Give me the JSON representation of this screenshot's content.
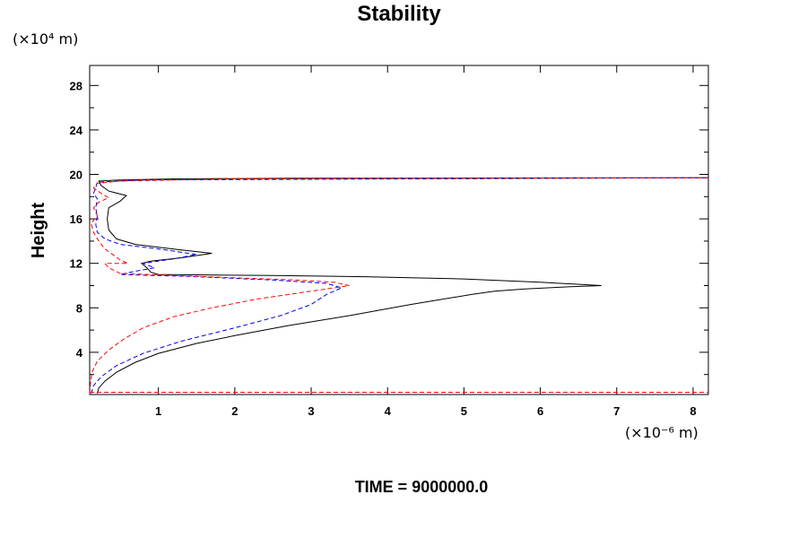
{
  "chart_data": {
    "type": "line",
    "title": "Stability",
    "ylabel": "Height",
    "y_unit": "(×10⁴ m)",
    "x_unit": "(×10⁻⁶ m)",
    "footer": "TIME = 9000000.0",
    "xlim": [
      0.1,
      8.2
    ],
    "ylim": [
      0.2,
      29.8
    ],
    "x_ticks": [
      1,
      2,
      3,
      4,
      5,
      6,
      7,
      8
    ],
    "y_ticks": [
      4,
      8,
      12,
      16,
      20,
      24,
      28
    ],
    "grid": false,
    "series": [
      {
        "color": "#000000",
        "dash": "solid",
        "points": [
          [
            0.2,
            0.3
          ],
          [
            0.22,
            0.8
          ],
          [
            0.3,
            1.4
          ],
          [
            0.45,
            2.2
          ],
          [
            0.7,
            3.1
          ],
          [
            1.0,
            3.9
          ],
          [
            1.5,
            4.8
          ],
          [
            2.0,
            5.5
          ],
          [
            2.7,
            6.4
          ],
          [
            3.5,
            7.3
          ],
          [
            4.3,
            8.3
          ],
          [
            5.1,
            9.2
          ],
          [
            5.4,
            9.5
          ],
          [
            5.8,
            9.7
          ],
          [
            6.4,
            9.9
          ],
          [
            6.8,
            10.0
          ],
          [
            6.0,
            10.3
          ],
          [
            5.0,
            10.6
          ],
          [
            3.7,
            10.8
          ],
          [
            2.5,
            10.9
          ],
          [
            1.0,
            11.0
          ],
          [
            0.9,
            11.2
          ],
          [
            0.85,
            11.6
          ],
          [
            0.78,
            12.0
          ],
          [
            0.9,
            12.2
          ],
          [
            1.3,
            12.5
          ],
          [
            1.7,
            12.9
          ],
          [
            1.3,
            13.2
          ],
          [
            0.7,
            13.7
          ],
          [
            0.45,
            14.2
          ],
          [
            0.35,
            15.0
          ],
          [
            0.33,
            16.0
          ],
          [
            0.35,
            17.0
          ],
          [
            0.5,
            17.6
          ],
          [
            0.58,
            18.1
          ],
          [
            0.35,
            18.5
          ],
          [
            0.25,
            19.0
          ],
          [
            0.22,
            19.4
          ],
          [
            0.5,
            19.5
          ],
          [
            1.2,
            19.6
          ],
          [
            2.8,
            19.65
          ],
          [
            8.2,
            19.7
          ]
        ]
      },
      {
        "color": "#0000ff",
        "dash": "dashed",
        "points": [
          [
            0.12,
            0.3
          ],
          [
            0.15,
            1.0
          ],
          [
            0.25,
            1.8
          ],
          [
            0.45,
            2.8
          ],
          [
            0.8,
            3.9
          ],
          [
            1.3,
            5.0
          ],
          [
            2.0,
            6.2
          ],
          [
            2.6,
            7.3
          ],
          [
            3.0,
            8.3
          ],
          [
            3.2,
            9.2
          ],
          [
            3.4,
            9.8
          ],
          [
            3.2,
            10.2
          ],
          [
            2.5,
            10.5
          ],
          [
            1.5,
            10.8
          ],
          [
            0.5,
            11.0
          ],
          [
            0.7,
            11.3
          ],
          [
            0.95,
            11.6
          ],
          [
            0.8,
            12.0
          ],
          [
            1.2,
            12.4
          ],
          [
            1.5,
            12.8
          ],
          [
            1.0,
            13.3
          ],
          [
            0.5,
            13.7
          ],
          [
            0.3,
            14.2
          ],
          [
            0.2,
            14.8
          ],
          [
            0.18,
            15.5
          ],
          [
            0.2,
            16.2
          ],
          [
            0.18,
            17.0
          ],
          [
            0.2,
            17.8
          ],
          [
            0.15,
            18.3
          ],
          [
            0.18,
            18.8
          ],
          [
            0.2,
            19.3
          ],
          [
            0.8,
            19.5
          ],
          [
            8.2,
            19.7
          ]
        ]
      },
      {
        "color": "#ff0000",
        "dash": "dashed",
        "points": [
          [
            0.1,
            0.3
          ],
          [
            0.11,
            1.2
          ],
          [
            0.13,
            2.2
          ],
          [
            0.2,
            3.2
          ],
          [
            0.35,
            4.2
          ],
          [
            0.55,
            5.2
          ],
          [
            0.8,
            6.2
          ],
          [
            1.2,
            7.2
          ],
          [
            1.7,
            8.0
          ],
          [
            2.3,
            8.8
          ],
          [
            2.8,
            9.3
          ],
          [
            3.3,
            9.8
          ],
          [
            3.5,
            10.0
          ],
          [
            3.3,
            10.3
          ],
          [
            2.8,
            10.5
          ],
          [
            2.0,
            10.7
          ],
          [
            1.2,
            10.9
          ],
          [
            0.5,
            11.1
          ],
          [
            0.35,
            11.6
          ],
          [
            0.3,
            12.0
          ],
          [
            0.6,
            12.0
          ],
          [
            0.5,
            12.3
          ],
          [
            0.4,
            12.8
          ],
          [
            0.3,
            13.3
          ],
          [
            0.22,
            14.0
          ],
          [
            0.15,
            14.8
          ],
          [
            0.12,
            15.6
          ],
          [
            0.2,
            16.3
          ],
          [
            0.15,
            17.0
          ],
          [
            0.22,
            17.5
          ],
          [
            0.35,
            17.9
          ],
          [
            0.25,
            18.3
          ],
          [
            0.15,
            18.8
          ],
          [
            0.2,
            19.2
          ],
          [
            0.5,
            19.4
          ],
          [
            2.0,
            19.6
          ],
          [
            8.2,
            19.7
          ]
        ]
      },
      {
        "color": "#ff0000",
        "dash": "dashed",
        "points": [
          [
            0.1,
            0.4
          ],
          [
            8.2,
            0.4
          ]
        ]
      }
    ]
  }
}
